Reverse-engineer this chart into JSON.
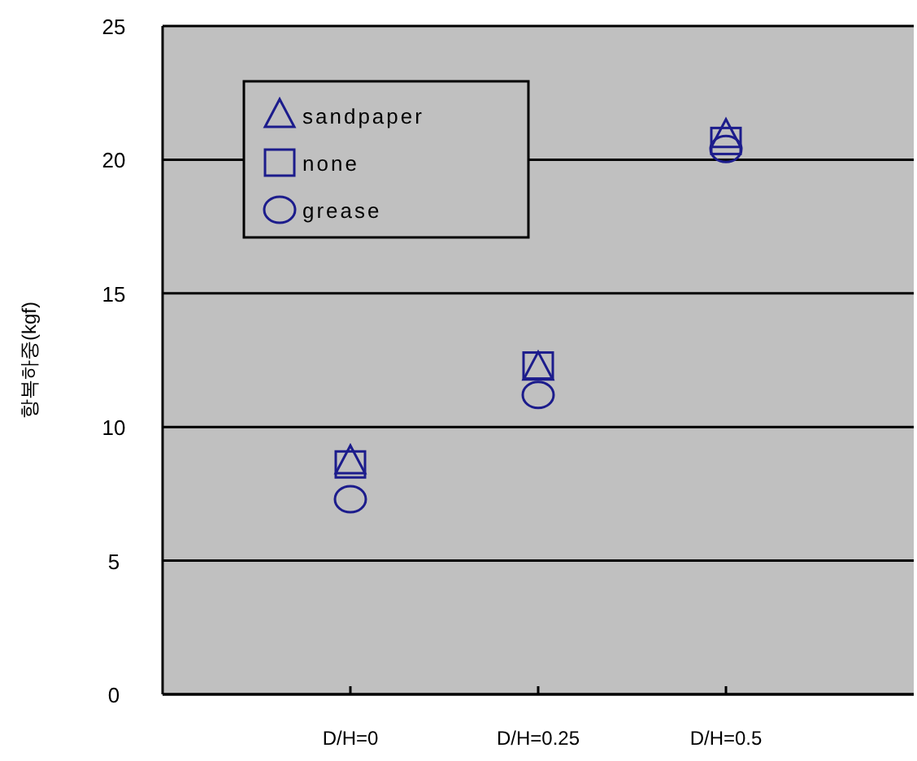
{
  "chart_data": {
    "type": "scatter",
    "ylabel": "항복하중(kgf)",
    "categories": [
      "D/H=0",
      "D/H=0.25",
      "D/H=0.5"
    ],
    "series": [
      {
        "name": "sandpaper",
        "color": "#1c1c8c",
        "marker": "triangle",
        "values": [
          8.7,
          12.2,
          20.9
        ]
      },
      {
        "name": "none",
        "color": "#1c1c8c",
        "marker": "square",
        "values": [
          8.6,
          12.3,
          20.7
        ]
      },
      {
        "name": "grease",
        "color": "#1c1c8c",
        "marker": "circle",
        "values": [
          7.3,
          11.2,
          20.4
        ]
      }
    ],
    "ylim": [
      0,
      25
    ],
    "yticks": [
      0,
      5,
      10,
      15,
      20,
      25
    ],
    "grid": "y",
    "legend": "top left"
  }
}
